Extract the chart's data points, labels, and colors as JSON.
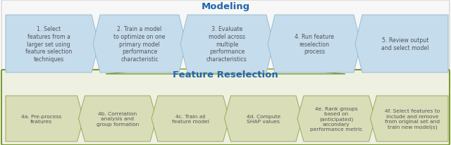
{
  "modeling_title": "Modeling",
  "reselection_title": "Feature Reselection",
  "modeling_steps": [
    "1. Select\nfeatures from a\nlarger set using\nfeature selection\ntechniques",
    "2. Train a model\nto optimize on one\nprimary model\nperformance\ncharacteristic",
    "3. Evaluate\nmodel across\nmultiple\nperformance\ncharacteristics",
    "4. Run feature\nreselection\nprocess",
    "5. Review output\nand select model"
  ],
  "reselection_steps": [
    "4a. Pre-process\nfeatures",
    "4b. Correlation\nanalysis and\ngroup formation",
    "4c. Train all\nfeature model",
    "4d. Compute\nSHAP values",
    "4e. Rank groups\nbased on\n(anticipated)\nsecondary\nperformance metric",
    "4f. Select features to\ninclude and remove\nfrom original set and\ntrain new model(s)"
  ],
  "mod_arrow_fc": "#c5dced",
  "mod_arrow_ec": "#9bbdcc",
  "res_arrow_fc": "#d9ddb8",
  "res_arrow_ec": "#9aaa5a",
  "mod_title_color": "#2266aa",
  "res_title_color": "#2266aa",
  "mod_text_color": "#555555",
  "res_text_color": "#555555",
  "top_box_fc": "#f7f7f7",
  "top_box_ec": "#cccccc",
  "bot_box_fc": "#eef0e2",
  "bot_box_ec": "#7a9a30",
  "connector_fc": "#eef0e2",
  "connector_ec": "#7a9a30"
}
